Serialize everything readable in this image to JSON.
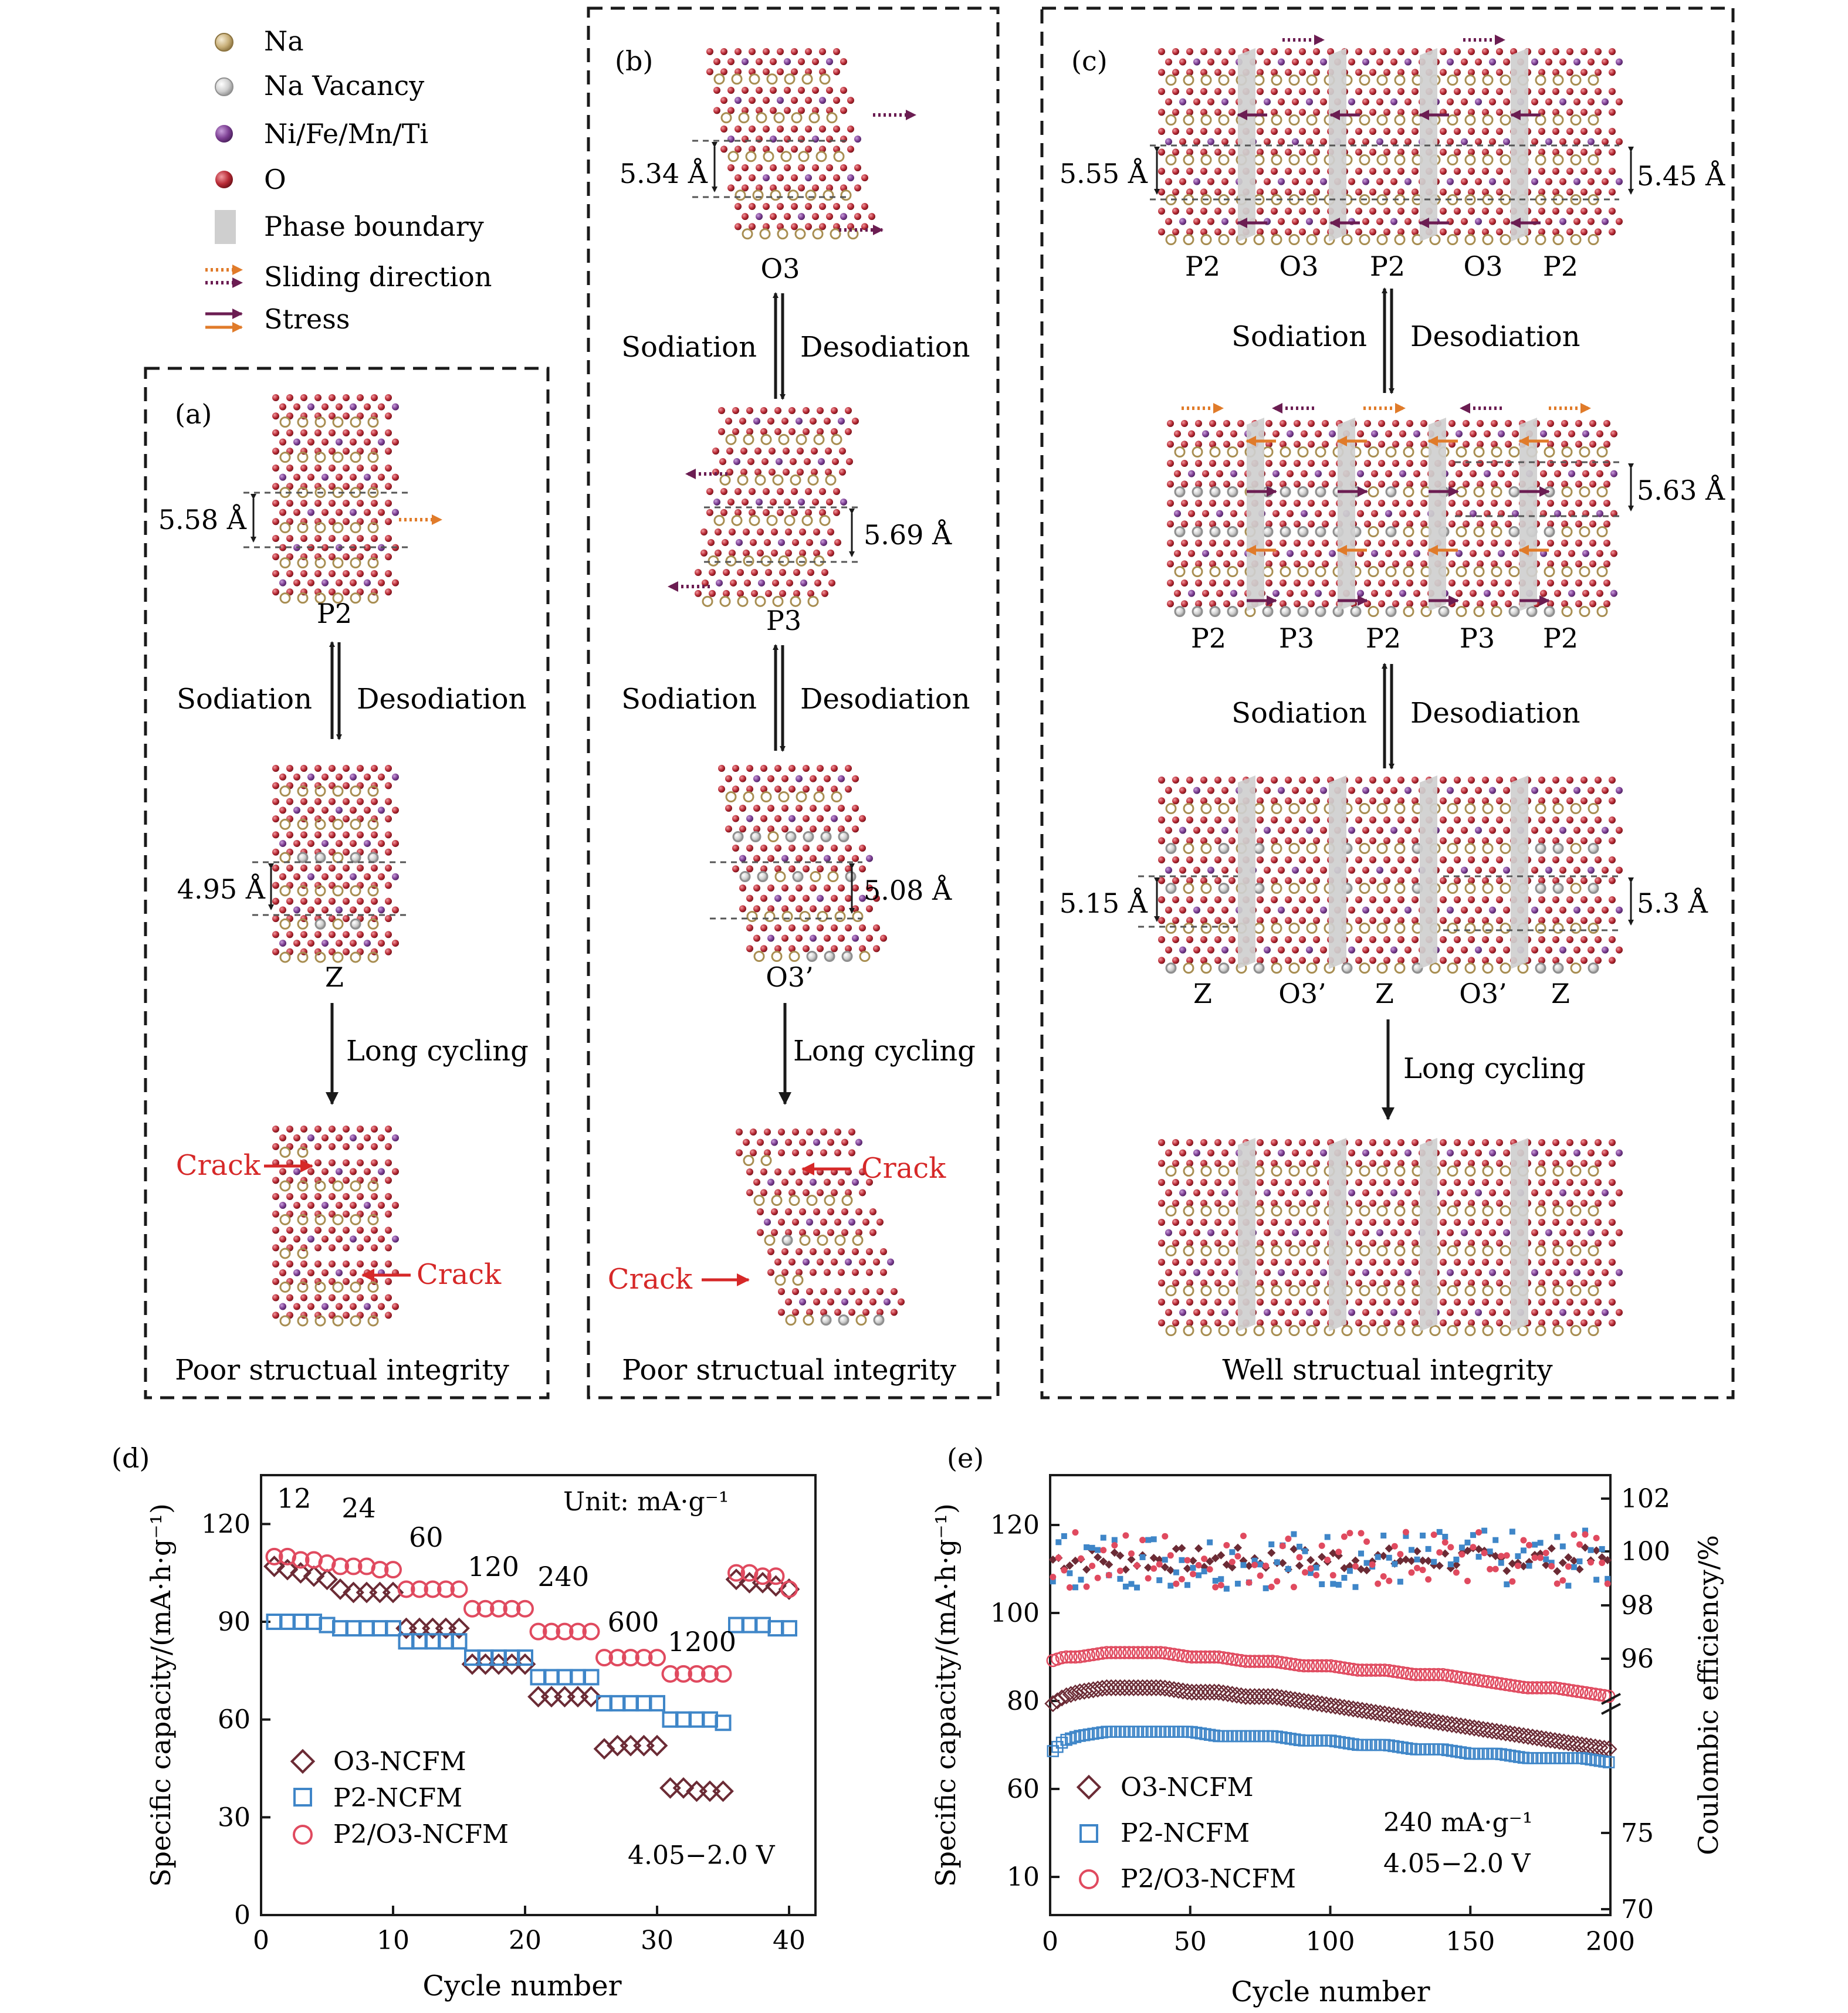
{
  "colors": {
    "na": "#c9b07a",
    "vacancy": "#c4c4c4",
    "tm": "#7d3f93",
    "o": "#b82a35",
    "boundary": "#cfcfcf",
    "red": "#d62828",
    "slide_orange": "#e07b2a",
    "slide_purple": "#6b1d52",
    "o3_series": "#6b2b35",
    "p2_series": "#3f86c8",
    "p2o3_series": "#e04a5f"
  },
  "legend": [
    {
      "label": "Na",
      "symbol": "na-dot"
    },
    {
      "label": "Na Vacancy",
      "symbol": "vacancy-dot"
    },
    {
      "label": "Ni/Fe/Mn/Ti",
      "symbol": "tm-dot"
    },
    {
      "label": "O",
      "symbol": "o-dot"
    },
    {
      "label": "Phase boundary",
      "symbol": "boundary-rect"
    },
    {
      "label": "Sliding direction",
      "symbol": "dotted-arrows"
    },
    {
      "label": "Stress",
      "symbol": "solid-arrows"
    }
  ],
  "panel_a": {
    "letter": "(a)",
    "spacing_top": "5.58 Å",
    "phase_top": "P2",
    "sodiation": "Sodiation",
    "desodiation": "Desodiation",
    "spacing_bottom": "4.95 Å",
    "phase_bottom": "Z",
    "long_cycling": "Long cycling",
    "crack1": "Crack",
    "crack2": "Crack",
    "footer": "Poor structual integrity"
  },
  "panel_b": {
    "letter": "(b)",
    "spacing_1": "5.34 Å",
    "phase_1": "O3",
    "sodiation_1": "Sodiation",
    "desodiation_1": "Desodiation",
    "spacing_2": "5.69 Å",
    "phase_2": "P3",
    "sodiation_2": "Sodiation",
    "desodiation_2": "Desodiation",
    "spacing_3": "5.08 Å",
    "phase_3": "O3’",
    "long_cycling": "Long cycling",
    "crack1": "Crack",
    "crack2": "Crack",
    "footer": "Poor structual integrity"
  },
  "panel_c": {
    "letter": "(c)",
    "spacing_1_left": "5.55 Å",
    "spacing_1_right": "5.45 Å",
    "phases_1": [
      "P2",
      "O3",
      "P2",
      "O3",
      "P2"
    ],
    "sodiation_1": "Sodiation",
    "desodiation_1": "Desodiation",
    "spacing_2_right": "5.63 Å",
    "phases_2": [
      "P2",
      "P3",
      "P2",
      "P3",
      "P2"
    ],
    "sodiation_2": "Sodiation",
    "desodiation_2": "Desodiation",
    "spacing_3_left": "5.15 Å",
    "spacing_3_right": "5.3 Å",
    "phases_3": [
      "Z",
      "O3’",
      "Z",
      "O3’",
      "Z"
    ],
    "long_cycling": "Long cycling",
    "footer": "Well structual integrity"
  },
  "chart_d": {
    "letter": "(d)",
    "type": "scatter",
    "ylabel": "Specific capacity/(mA·h·g⁻¹)",
    "xlabel": "Cycle number",
    "unit_note": "Unit: mA·g⁻¹",
    "voltage": "4.05−2.0 V",
    "xlim": [
      0,
      42
    ],
    "ylim": [
      0,
      135
    ],
    "xticks": [
      "0",
      "10",
      "20",
      "30",
      "40"
    ],
    "yticks": [
      "0",
      "30",
      "60",
      "90",
      "120"
    ],
    "rates": [
      {
        "label": "12",
        "x": 2.5,
        "y": 125
      },
      {
        "label": "24",
        "x": 7.4,
        "y": 122
      },
      {
        "label": "60",
        "x": 12.5,
        "y": 113
      },
      {
        "label": "120",
        "x": 17.6,
        "y": 104
      },
      {
        "label": "240",
        "x": 22.9,
        "y": 101
      },
      {
        "label": "600",
        "x": 28.2,
        "y": 87
      },
      {
        "label": "1200",
        "x": 33.4,
        "y": 81
      }
    ],
    "series": [
      {
        "name": "O3-NCFM",
        "values": [
          107,
          106,
          105,
          104,
          103,
          100,
          99,
          99,
          99,
          99,
          88,
          88,
          88,
          88,
          88,
          77,
          77,
          77,
          77,
          77,
          67,
          67,
          67,
          67,
          67,
          51,
          52,
          52,
          52,
          52,
          39,
          39,
          38,
          38,
          38,
          103,
          102,
          102,
          101,
          100
        ]
      },
      {
        "name": "P2-NCFM",
        "values": [
          90,
          90,
          90,
          90,
          89,
          88,
          88,
          88,
          88,
          88,
          84,
          84,
          84,
          84,
          84,
          79,
          79,
          79,
          79,
          79,
          73,
          73,
          73,
          73,
          73,
          65,
          65,
          65,
          65,
          65,
          60,
          60,
          60,
          60,
          59,
          89,
          89,
          89,
          88,
          88
        ]
      },
      {
        "name": "P2/O3-NCFM",
        "values": [
          110,
          110,
          109,
          109,
          108,
          107,
          107,
          107,
          106,
          106,
          100,
          100,
          100,
          100,
          100,
          94,
          94,
          94,
          94,
          94,
          87,
          87,
          87,
          87,
          87,
          79,
          79,
          79,
          79,
          79,
          74,
          74,
          74,
          74,
          74,
          105,
          105,
          104,
          104,
          100
        ]
      }
    ]
  },
  "chart_e": {
    "letter": "(e)",
    "type": "scatter",
    "ylabel": "Specific capacity/(mA·h·g⁻¹)",
    "y2label": "Coulombic efficiency/%",
    "xlabel": "Cycle number",
    "rate": "240 mA·g⁻¹",
    "voltage": "4.05−2.0 V",
    "xlim": [
      0,
      200
    ],
    "xticks": [
      "0",
      "50",
      "100",
      "150",
      "200"
    ],
    "yticks": [
      "10",
      "60",
      "80",
      "100",
      "120"
    ],
    "y2ticks": [
      "70",
      "75",
      "96",
      "98",
      "100",
      "102"
    ],
    "capacity": [
      {
        "name": "O3-NCFM",
        "x": [
          0,
          5,
          10,
          20,
          30,
          40,
          50,
          60,
          70,
          80,
          90,
          100,
          110,
          120,
          130,
          140,
          150,
          160,
          170,
          180,
          190,
          200
        ],
        "y": [
          79,
          81,
          82,
          83,
          83,
          83,
          82,
          82,
          81,
          81,
          80,
          79,
          78,
          77,
          76,
          75,
          74,
          73,
          72,
          71,
          70,
          69
        ]
      },
      {
        "name": "P2-NCFM",
        "x": [
          0,
          5,
          10,
          20,
          30,
          40,
          50,
          60,
          70,
          80,
          90,
          100,
          110,
          120,
          130,
          140,
          150,
          160,
          170,
          180,
          190,
          200
        ],
        "y": [
          68,
          71,
          72,
          73,
          73,
          73,
          73,
          72,
          72,
          72,
          71,
          71,
          70,
          70,
          69,
          69,
          68,
          68,
          67,
          67,
          67,
          66
        ]
      },
      {
        "name": "P2/O3-NCFM",
        "x": [
          0,
          5,
          10,
          20,
          30,
          40,
          50,
          60,
          70,
          80,
          90,
          100,
          110,
          120,
          130,
          140,
          150,
          160,
          170,
          180,
          190,
          200
        ],
        "y": [
          89,
          90,
          90,
          91,
          91,
          91,
          90,
          90,
          89,
          89,
          88,
          88,
          87,
          87,
          86,
          86,
          85,
          84,
          83,
          83,
          82,
          81
        ]
      }
    ],
    "efficiency_mean": 99.7
  }
}
